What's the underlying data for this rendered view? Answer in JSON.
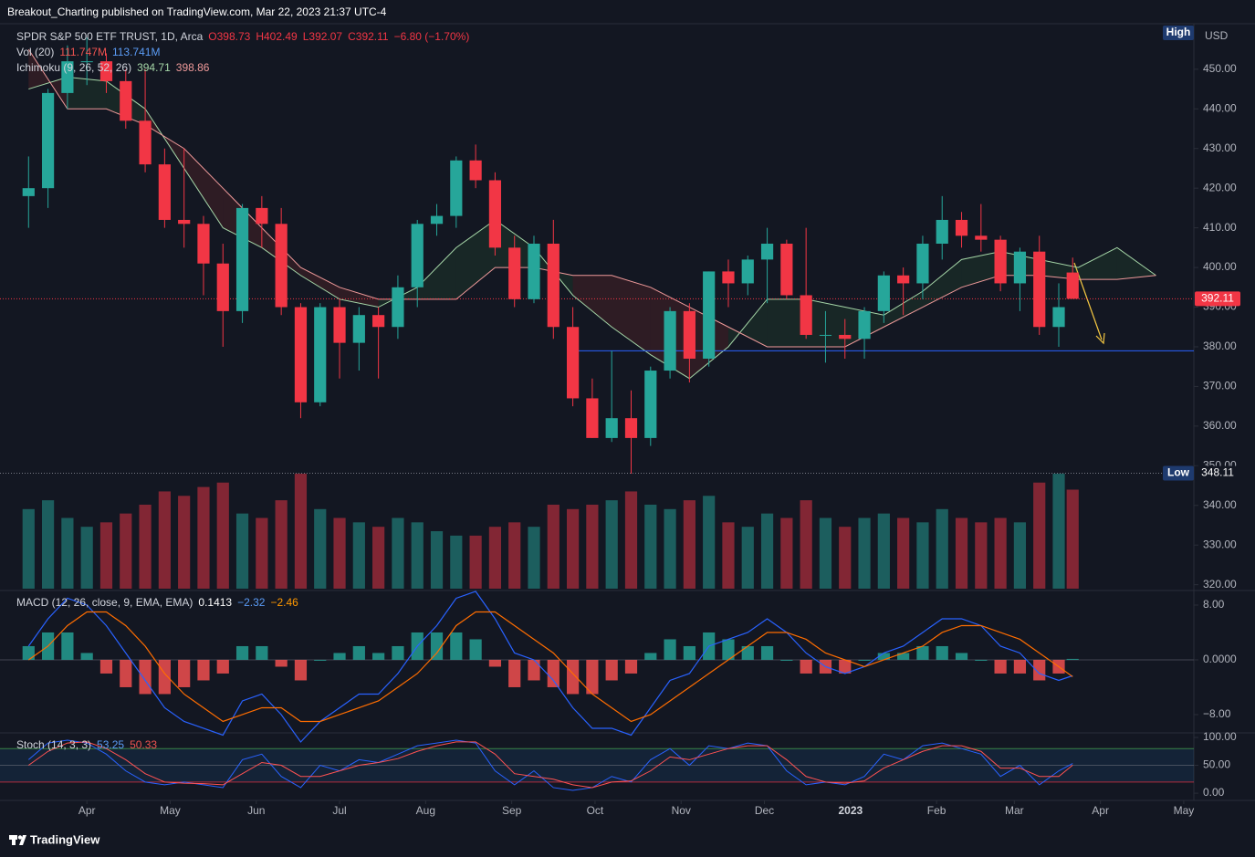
{
  "header": "Breakout_Charting published on TradingView.com, Mar 22, 2023 21:37 UTC-4",
  "footer": "TradingView",
  "legend": {
    "title": "SPDR S&P 500 ETF TRUST, 1D, Arca",
    "ohlc": [
      "O398.73",
      "H402.49",
      "L392.07",
      "C392.11"
    ],
    "change": "−6.80 (−1.70%)",
    "vol_title": "Vol (20)",
    "vol_values": [
      "111.747M",
      "113.741M"
    ],
    "ichimoku_title": "Ichimoku (9, 26, 52, 26)",
    "ichimoku_values": [
      "394.71",
      "398.86"
    ],
    "macd_title": "MACD (12, 26, close, 9, EMA, EMA)",
    "macd_values": [
      "0.1413",
      "−2.32",
      "−2.46"
    ],
    "stoch_title": "Stoch (14, 3, 3)",
    "stoch_values": [
      "53.25",
      "50.33"
    ]
  },
  "chart_data": {
    "type": "candlestick",
    "currency": "USD",
    "high_tag": "High",
    "low_tag": "Low",
    "x": [
      3,
      10,
      17,
      24,
      31,
      38,
      45,
      52,
      59,
      66,
      73,
      80,
      87,
      94,
      101,
      108,
      115,
      122,
      129,
      136,
      143,
      150,
      157,
      164,
      171,
      178,
      185,
      192,
      199,
      206,
      213,
      220,
      227,
      234,
      241,
      248,
      255,
      262,
      269,
      276,
      283,
      290,
      297,
      304,
      311,
      318,
      325,
      332,
      339,
      346,
      353,
      360,
      367,
      374,
      379
    ],
    "candles": [
      [
        418,
        428,
        410,
        420
      ],
      [
        420,
        445,
        415,
        444
      ],
      [
        444,
        456,
        440,
        452
      ],
      [
        452,
        458,
        446,
        452
      ],
      [
        452,
        454,
        444,
        447
      ],
      [
        447,
        450,
        435,
        437
      ],
      [
        437,
        450,
        424,
        426
      ],
      [
        426,
        430,
        410,
        412
      ],
      [
        412,
        430,
        405,
        411
      ],
      [
        411,
        413,
        393,
        401
      ],
      [
        401,
        406,
        380,
        389
      ],
      [
        389,
        416,
        386,
        415
      ],
      [
        415,
        418,
        405,
        411
      ],
      [
        411,
        415,
        388,
        390
      ],
      [
        390,
        391,
        362,
        366
      ],
      [
        366,
        391,
        365,
        390
      ],
      [
        390,
        392,
        372,
        381
      ],
      [
        381,
        390,
        374,
        388
      ],
      [
        388,
        390,
        372,
        385
      ],
      [
        385,
        398,
        382,
        395
      ],
      [
        395,
        412,
        390,
        411
      ],
      [
        411,
        416,
        408,
        413
      ],
      [
        413,
        428,
        410,
        427
      ],
      [
        427,
        431,
        420,
        422
      ],
      [
        422,
        424,
        403,
        405
      ],
      [
        405,
        408,
        390,
        392
      ],
      [
        392,
        408,
        391,
        406
      ],
      [
        406,
        412,
        382,
        385
      ],
      [
        385,
        390,
        365,
        367
      ],
      [
        367,
        372,
        357,
        357
      ],
      [
        357,
        379,
        356,
        362
      ],
      [
        362,
        369,
        348,
        357
      ],
      [
        357,
        375,
        355,
        374
      ],
      [
        374,
        390,
        372,
        389
      ],
      [
        389,
        391,
        371,
        377
      ],
      [
        377,
        399,
        375,
        399
      ],
      [
        399,
        402,
        390,
        396
      ],
      [
        396,
        403,
        393,
        402
      ],
      [
        402,
        410,
        391,
        406
      ],
      [
        406,
        407,
        392,
        393
      ],
      [
        393,
        410,
        382,
        383
      ],
      [
        383,
        389,
        376,
        383
      ],
      [
        383,
        387,
        377,
        382
      ],
      [
        382,
        390,
        377,
        389
      ],
      [
        389,
        399,
        386,
        398
      ],
      [
        398,
        400,
        388,
        396
      ],
      [
        396,
        408,
        392,
        406
      ],
      [
        406,
        418,
        402,
        412
      ],
      [
        412,
        414,
        405,
        408
      ],
      [
        408,
        416,
        404,
        407
      ],
      [
        407,
        408,
        394,
        396
      ],
      [
        396,
        405,
        389,
        404
      ],
      [
        404,
        408,
        383,
        385
      ],
      [
        385,
        396,
        380,
        390
      ],
      [
        398.73,
        402.49,
        392.07,
        392.11
      ]
    ],
    "volume": [
      90,
      100,
      80,
      70,
      75,
      85,
      95,
      110,
      105,
      115,
      120,
      85,
      80,
      100,
      130,
      90,
      80,
      75,
      70,
      80,
      75,
      65,
      60,
      60,
      70,
      75,
      70,
      95,
      90,
      95,
      100,
      110,
      95,
      90,
      100,
      105,
      75,
      70,
      85,
      80,
      100,
      80,
      70,
      80,
      85,
      80,
      75,
      90,
      80,
      75,
      80,
      75,
      120,
      130,
      112
    ],
    "volume_lim": [
      0,
      160
    ],
    "cloud_x": [
      3,
      17,
      31,
      45,
      59,
      73,
      87,
      101,
      115,
      129,
      143,
      157,
      171,
      185,
      199,
      213,
      227,
      241,
      255,
      269,
      283,
      297,
      311,
      325,
      339,
      353,
      367,
      381,
      395,
      409
    ],
    "span_a": [
      445,
      448,
      447,
      440,
      425,
      410,
      405,
      398,
      392,
      390,
      395,
      405,
      412,
      405,
      393,
      385,
      378,
      372,
      380,
      392,
      392,
      390,
      388,
      394,
      402,
      404,
      402,
      400,
      405,
      398
    ],
    "span_b": [
      455,
      440,
      440,
      436,
      430,
      420,
      410,
      400,
      395,
      392,
      392,
      392,
      400,
      400,
      398,
      398,
      395,
      390,
      385,
      380,
      380,
      380,
      385,
      390,
      395,
      398,
      398,
      397,
      397,
      398
    ],
    "last_price": 392.11,
    "low_price": 348.11,
    "support": {
      "value": 379,
      "from": 200
    },
    "xlim": [
      -4,
      421
    ],
    "xticks": [
      {
        "value": 24,
        "label": "Apr"
      },
      {
        "value": 54,
        "label": "May"
      },
      {
        "value": 85,
        "label": "Jun"
      },
      {
        "value": 115,
        "label": "Jul"
      },
      {
        "value": 146,
        "label": "Aug"
      },
      {
        "value": 177,
        "label": "Sep"
      },
      {
        "value": 207,
        "label": "Oct"
      },
      {
        "value": 238,
        "label": "Nov"
      },
      {
        "value": 268,
        "label": "Dec"
      },
      {
        "value": 299,
        "label": "2023"
      },
      {
        "value": 330,
        "label": "Feb"
      },
      {
        "value": 358,
        "label": "Mar"
      },
      {
        "value": 389,
        "label": "Apr"
      },
      {
        "value": 419,
        "label": "May"
      }
    ],
    "ylim": [
      319,
      461.7
    ],
    "yticks": [
      {
        "value": 320,
        "label": "320.00"
      },
      {
        "value": 330,
        "label": "330.00"
      },
      {
        "value": 340,
        "label": "340.00"
      },
      {
        "value": 350,
        "label": "350.00"
      },
      {
        "value": 360,
        "label": "360.00"
      },
      {
        "value": 370,
        "label": "370.00"
      },
      {
        "value": 380,
        "label": "380.00"
      },
      {
        "value": 390,
        "label": "390.00"
      },
      {
        "value": 400,
        "label": "400.00"
      },
      {
        "value": 410,
        "label": "410.00"
      },
      {
        "value": 420,
        "label": "420.00"
      },
      {
        "value": 430,
        "label": "430.00"
      },
      {
        "value": 440,
        "label": "440.00"
      },
      {
        "value": 450,
        "label": "450.00"
      }
    ],
    "grid": false,
    "macd": {
      "line": [
        2,
        6,
        9,
        8,
        5,
        1,
        -3,
        -7,
        -9,
        -10,
        -11,
        -6,
        -5,
        -8,
        -12,
        -9,
        -7,
        -5,
        -5,
        -2,
        2,
        5,
        9,
        10,
        6,
        1,
        0,
        -3,
        -7,
        -10,
        -10,
        -11,
        -7,
        -3,
        -2,
        2,
        3,
        4,
        6,
        4,
        1,
        -1,
        -2,
        -1,
        1,
        2,
        4,
        6,
        6,
        5,
        2,
        1,
        -2,
        -3,
        -2.32
      ],
      "signal": [
        0,
        2,
        5,
        7,
        7,
        5,
        2,
        -2,
        -5,
        -7,
        -9,
        -8,
        -7,
        -7,
        -9,
        -9,
        -8,
        -7,
        -6,
        -4,
        -2,
        1,
        5,
        7,
        7,
        5,
        3,
        1,
        -2,
        -5,
        -7,
        -9,
        -8,
        -6,
        -4,
        -2,
        0,
        2,
        4,
        4,
        3,
        1,
        0,
        -1,
        0,
        1,
        2,
        4,
        5,
        5,
        4,
        3,
        1,
        -1,
        -2.46
      ],
      "hist": [
        2,
        4,
        4,
        1,
        -2,
        -4,
        -5,
        -5,
        -4,
        -3,
        -2,
        2,
        2,
        -1,
        -3,
        0,
        1,
        2,
        1,
        2,
        4,
        4,
        4,
        3,
        -1,
        -4,
        -3,
        -4,
        -5,
        -5,
        -3,
        -2,
        1,
        3,
        2,
        4,
        3,
        2,
        2,
        0,
        -2,
        -2,
        -2,
        0,
        1,
        1,
        2,
        2,
        1,
        0,
        -2,
        -2,
        -3,
        -2,
        0.1413
      ],
      "ylim": [
        -10.27,
        9.73
      ],
      "yticks": [
        {
          "value": 8,
          "label": "8.00"
        },
        {
          "value": 0,
          "label": "0.0000"
        },
        {
          "value": -8,
          "label": "−8.00"
        }
      ]
    },
    "stoch": {
      "k": [
        60,
        90,
        95,
        90,
        70,
        40,
        20,
        15,
        20,
        15,
        10,
        60,
        70,
        30,
        10,
        50,
        40,
        60,
        55,
        70,
        85,
        90,
        95,
        90,
        40,
        15,
        40,
        10,
        5,
        10,
        30,
        20,
        60,
        80,
        50,
        85,
        80,
        90,
        85,
        40,
        15,
        20,
        15,
        30,
        70,
        60,
        85,
        90,
        80,
        70,
        30,
        50,
        15,
        40,
        53.25
      ],
      "d": [
        50,
        75,
        90,
        92,
        80,
        60,
        35,
        20,
        18,
        17,
        15,
        35,
        55,
        50,
        30,
        30,
        40,
        50,
        55,
        62,
        75,
        85,
        92,
        92,
        70,
        35,
        30,
        25,
        15,
        10,
        20,
        22,
        40,
        65,
        60,
        70,
        80,
        85,
        85,
        60,
        30,
        20,
        18,
        22,
        45,
        60,
        75,
        85,
        85,
        75,
        45,
        45,
        30,
        30,
        50.33
      ],
      "bands": [
        80,
        20
      ],
      "ylim": [
        -13,
        104.9
      ],
      "yticks": [
        {
          "value": 100,
          "label": "100.00"
        },
        {
          "value": 50,
          "label": "50.00"
        },
        {
          "value": 0,
          "label": "0.00"
        }
      ]
    }
  }
}
